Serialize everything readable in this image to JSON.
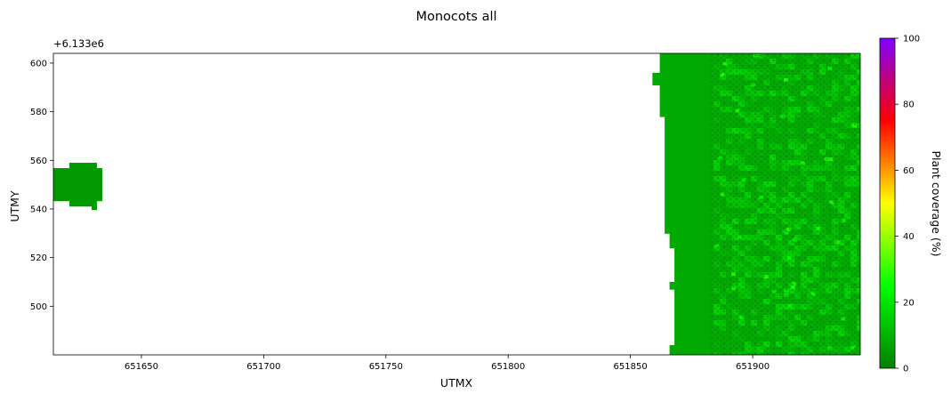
{
  "chart_data": {
    "type": "heatmap",
    "title": "Monocots all",
    "xlabel": "UTMX",
    "ylabel": "UTMY",
    "y_offset_label": "+6.133e6",
    "xlim": [
      651614,
      651944
    ],
    "ylim": [
      480,
      604
    ],
    "x_ticks": [
      651650,
      651700,
      651750,
      651800,
      651850,
      651900
    ],
    "y_ticks": [
      500,
      520,
      540,
      560,
      580,
      600
    ],
    "colorbar": {
      "label": "Plant coverage (%)",
      "range": [
        0,
        100
      ],
      "ticks": [
        0,
        20,
        40,
        60,
        80,
        100
      ],
      "colors": [
        "#008000",
        "#00ff00",
        "#ffff00",
        "#ff0000",
        "#8000ff"
      ]
    },
    "regions": [
      {
        "name": "left-patch",
        "x": [
          651614,
          651634
        ],
        "y": [
          541,
          559
        ],
        "coverage_percent": 5
      },
      {
        "name": "right-field",
        "x": [
          651860,
          651944
        ],
        "y": [
          480,
          604
        ],
        "coverage_percent": 8
      }
    ],
    "grid": false,
    "legend": "colorbar-right"
  }
}
